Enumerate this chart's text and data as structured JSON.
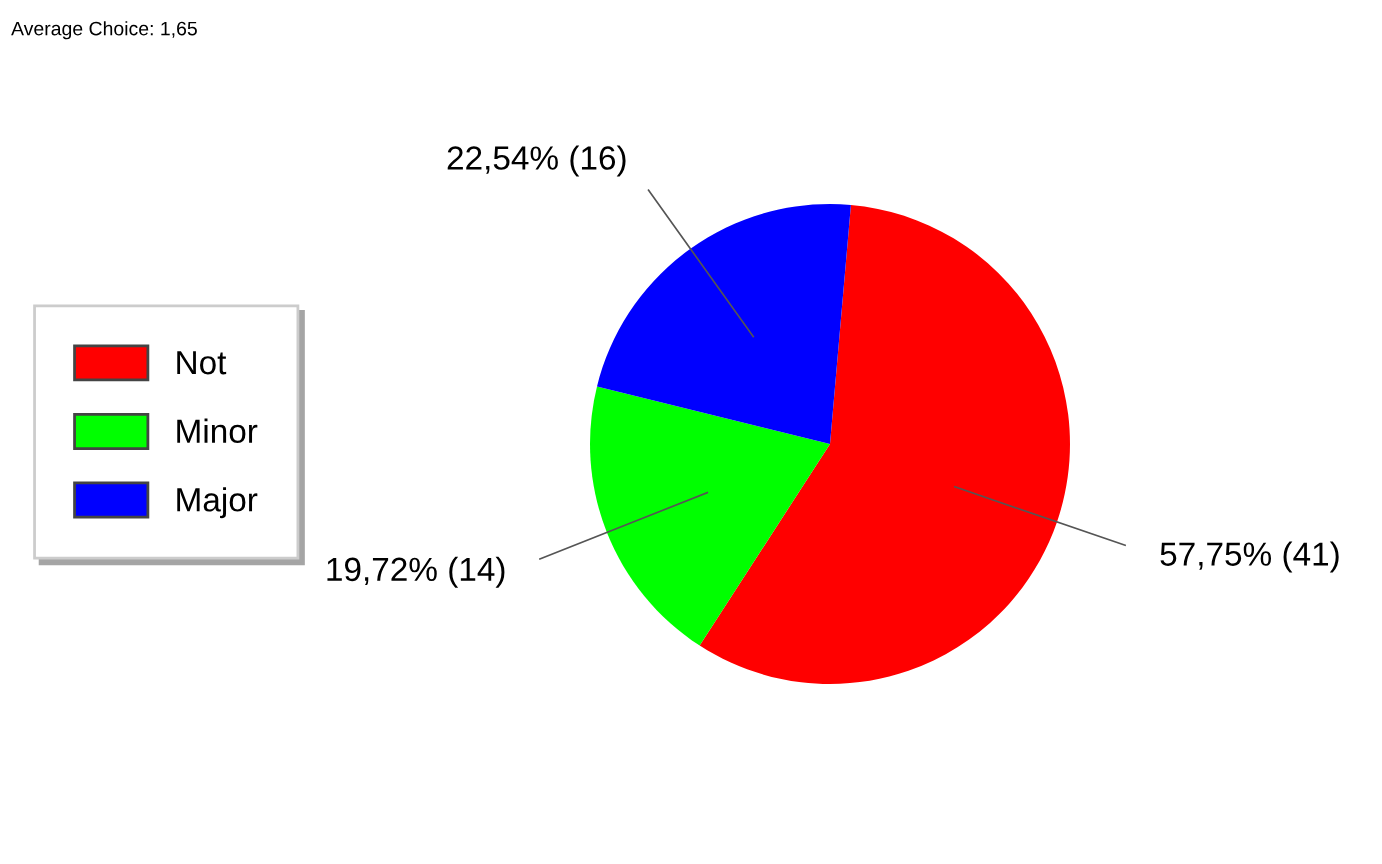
{
  "chart_data": {
    "type": "pie",
    "annotations": [
      "Average Choice: 1,65"
    ],
    "categories": [
      "Not",
      "Minor",
      "Major"
    ],
    "values": [
      41,
      14,
      16
    ],
    "colors": [
      "#ff0000",
      "#00ff00",
      "#0000ff"
    ],
    "value_labels": [
      "57,75% (41)",
      "19,72% (14)",
      "22,54% (16)"
    ],
    "legend": "left"
  }
}
